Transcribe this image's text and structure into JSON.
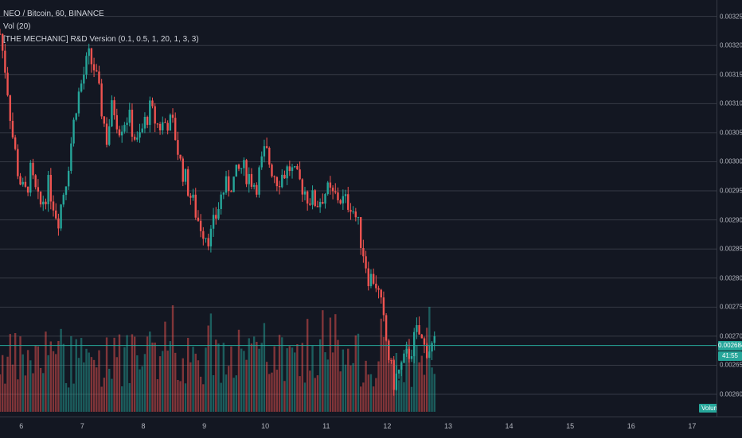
{
  "legend": {
    "symbol": "NEO / Bitcoin, 60, BINANCE",
    "volume_indicator": "Vol (20)",
    "mechanic_indicator": "[THE MECHANIC] R&D Version (0.1, 0.5, 1, 20, 1, 3, 3)"
  },
  "colors": {
    "bg": "#131722",
    "up": "#26a69a",
    "down": "#ef5350",
    "grid": "#363a45",
    "text": "#b2b5be"
  },
  "last_price": "0.002684",
  "countdown": "41:55",
  "volume_label": "Volume",
  "price_ticks": [
    "0.003250",
    "0.003200",
    "0.003150",
    "0.003100",
    "0.003050",
    "0.003000",
    "0.002950",
    "0.002900",
    "0.002850",
    "0.002800",
    "0.002750",
    "0.002700",
    "0.002650",
    "0.002600"
  ],
  "time_ticks": [
    "6",
    "7",
    "8",
    "9",
    "10",
    "11",
    "12",
    "13",
    "14",
    "15",
    "16",
    "17"
  ],
  "chart_data": {
    "type": "candlestick",
    "title": "NEO / Bitcoin, 60, BINANCE",
    "ylim": [
      0.00257,
      0.00327
    ],
    "x_range": [
      "5.65",
      "17.4"
    ],
    "close_anchors": {
      "x": [
        5.65,
        5.75,
        5.85,
        5.95,
        6.05,
        6.15,
        6.3,
        6.45,
        6.6,
        6.75,
        6.9,
        7.0,
        7.1,
        7.2,
        7.3,
        7.4,
        7.5,
        7.6,
        7.75,
        7.9,
        8.0,
        8.1,
        8.25,
        8.4,
        8.5,
        8.6,
        8.75,
        8.9,
        9.0,
        9.1,
        9.2,
        9.3,
        9.4,
        9.5,
        9.6,
        9.7,
        9.85,
        10.0,
        10.1,
        10.2,
        10.3,
        10.4,
        10.5,
        10.6,
        10.7,
        10.85,
        11.0,
        11.1,
        11.2,
        11.3,
        11.4,
        11.5,
        11.6,
        11.7,
        11.8,
        11.9,
        12.0,
        12.1,
        12.2,
        12.3,
        12.4,
        12.5,
        12.6,
        12.7,
        12.78
      ],
      "y": [
        0.00322,
        0.00315,
        0.00305,
        0.00298,
        0.00294,
        0.00298,
        0.00292,
        0.00296,
        0.0029,
        0.00298,
        0.0031,
        0.00314,
        0.00318,
        0.00316,
        0.0031,
        0.00304,
        0.0031,
        0.00306,
        0.00308,
        0.00303,
        0.00306,
        0.00309,
        0.00306,
        0.00307,
        0.00306,
        0.003,
        0.00295,
        0.0029,
        0.00288,
        0.00287,
        0.00291,
        0.00295,
        0.00296,
        0.00297,
        0.00299,
        0.00298,
        0.00296,
        0.00302,
        0.00299,
        0.00297,
        0.00298,
        0.00299,
        0.00297,
        0.00296,
        0.00294,
        0.00293,
        0.00295,
        0.00294,
        0.00294,
        0.00293,
        0.00293,
        0.0029,
        0.00285,
        0.0028,
        0.0028,
        0.00275,
        0.00268,
        0.00262,
        0.00264,
        0.00266,
        0.00268,
        0.00271,
        0.00268,
        0.00268,
        0.002684
      ]
    },
    "last_price": 0.002684,
    "volume_ylim": [
      0,
      1
    ]
  }
}
